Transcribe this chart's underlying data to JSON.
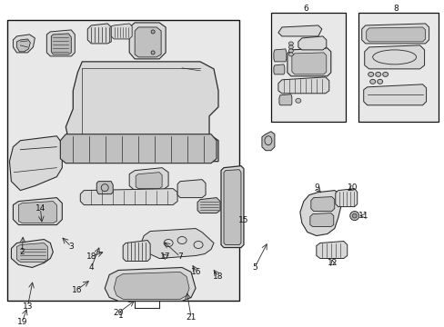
{
  "bg_color": "#ffffff",
  "fig_width": 4.89,
  "fig_height": 3.6,
  "dpi": 100,
  "gray_bg": "#e8e8e8",
  "line_color": "#2a2a2a",
  "part_outline": "#2a2a2a",
  "part_fill_light": "#d8d8d8",
  "part_fill_mid": "#c0c0c0",
  "font_size": 6.5
}
